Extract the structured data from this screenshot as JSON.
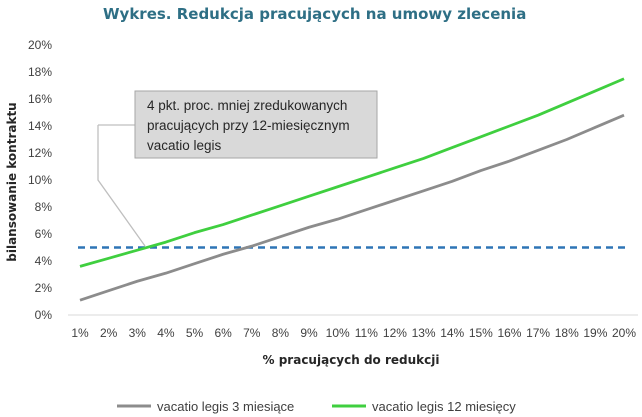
{
  "chart_data": {
    "type": "line",
    "title": "Wykres. Redukcja pracujących na umowy zlecenia",
    "xlabel": "% pracujących do redukcji",
    "ylabel": "bilansowanie kontraktu",
    "x": [
      "1%",
      "2%",
      "3%",
      "4%",
      "5%",
      "6%",
      "7%",
      "8%",
      "9%",
      "10%",
      "11%",
      "12%",
      "13%",
      "14%",
      "15%",
      "16%",
      "17%",
      "18%",
      "19%",
      "20%"
    ],
    "yticks": [
      "0%",
      "2%",
      "4%",
      "6%",
      "8%",
      "10%",
      "12%",
      "14%",
      "16%",
      "18%",
      "20%"
    ],
    "ylim": [
      0,
      20
    ],
    "series": [
      {
        "name": "vacatio legis 3 miesiące",
        "color": "#8c8c8c",
        "dashed": false,
        "values": [
          1.1,
          1.8,
          2.5,
          3.1,
          3.8,
          4.5,
          5.1,
          5.8,
          6.5,
          7.1,
          7.8,
          8.5,
          9.2,
          9.9,
          10.7,
          11.4,
          12.2,
          13.0,
          13.9,
          14.8
        ]
      },
      {
        "name": "vacatio legis 12 miesięcy",
        "color": "#3fcf3f",
        "dashed": false,
        "values": [
          3.6,
          4.2,
          4.8,
          5.4,
          6.1,
          6.7,
          7.4,
          8.1,
          8.8,
          9.5,
          10.2,
          10.9,
          11.6,
          12.4,
          13.2,
          14.0,
          14.8,
          15.7,
          16.6,
          17.5
        ]
      },
      {
        "name": "",
        "color": "#2e75b6",
        "dashed": true,
        "values": [
          5,
          5,
          5,
          5,
          5,
          5,
          5,
          5,
          5,
          5,
          5,
          5,
          5,
          5,
          5,
          5,
          5,
          5,
          5,
          5
        ]
      }
    ],
    "annotation": {
      "lines": [
        "4 pkt. proc. mniej zredukowanych",
        "pracujących przy 12-miesięcznym",
        "vacatio legis"
      ],
      "points_to": {
        "x": "3%",
        "y": 5
      }
    },
    "legend": "bottom",
    "grid": false
  }
}
